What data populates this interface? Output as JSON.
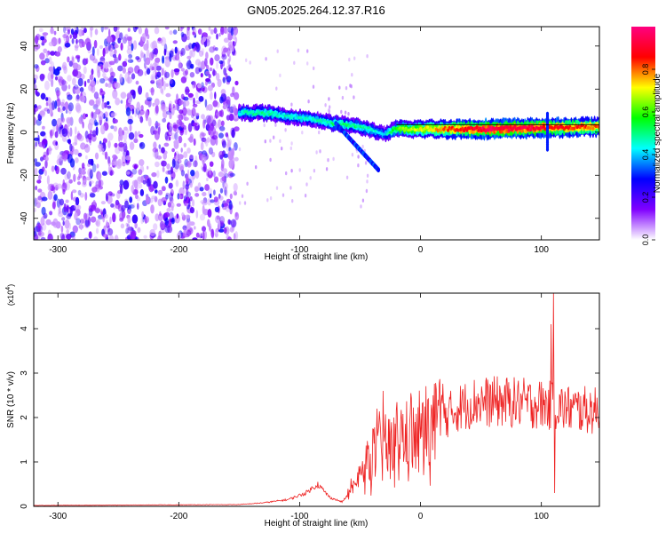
{
  "title": "GN05.2025.264.12.37.R16",
  "chart_data": [
    {
      "type": "heatmap",
      "panel": "spectrogram",
      "xlabel": "Height of straight line (km)",
      "ylabel": "Frequency (Hz)",
      "xlim": [
        -320,
        148
      ],
      "ylim": [
        -50,
        49
      ],
      "xticks": [
        -300,
        -200,
        -100,
        0,
        100
      ],
      "yticks": [
        -40,
        -20,
        0,
        20,
        40
      ],
      "colorbar": {
        "label": "Normalized spectral amplitude",
        "range": [
          0,
          1
        ],
        "ticks": [
          "0.0",
          "0.2",
          "0.4",
          "0.6",
          "0.8"
        ],
        "colors": [
          "#ffffff",
          "#8000ff",
          "#0000ff",
          "#00ffff",
          "#00ff00",
          "#ffff00",
          "#ff0000",
          "#ff0080"
        ]
      },
      "noise_region": {
        "x": [
          -320,
          -152
        ],
        "y": [
          -50,
          49
        ],
        "level": [
          0.05,
          0.3
        ]
      },
      "signal_track": [
        {
          "x": -150,
          "f": 9,
          "a": 0.45
        },
        {
          "x": -130,
          "f": 9,
          "a": 0.5
        },
        {
          "x": -110,
          "f": 7.5,
          "a": 0.45
        },
        {
          "x": -90,
          "f": 6,
          "a": 0.45
        },
        {
          "x": -70,
          "f": 4,
          "a": 0.5
        },
        {
          "x": -55,
          "f": 3,
          "a": 0.5
        },
        {
          "x": -40,
          "f": 1,
          "a": 0.45
        },
        {
          "x": -30,
          "f": -1,
          "a": 0.4
        },
        {
          "x": -20,
          "f": 1.5,
          "a": 0.6
        },
        {
          "x": 0,
          "f": 1.5,
          "a": 0.7
        },
        {
          "x": 30,
          "f": 1.5,
          "a": 0.85
        },
        {
          "x": 60,
          "f": 1.5,
          "a": 0.95
        },
        {
          "x": 100,
          "f": 2,
          "a": 0.9
        },
        {
          "x": 148,
          "f": 2.5,
          "a": 0.8
        }
      ],
      "harmonic_line": {
        "y": 3.5,
        "from_x": -20,
        "to_x": 148
      }
    },
    {
      "type": "line",
      "panel": "snr",
      "xlabel": "Height of straight line (km)",
      "ylabel": "SNR (10 * v/v)",
      "multiplier_base": "x10",
      "multiplier_exp": "4",
      "xlim": [
        -320,
        148
      ],
      "ylim": [
        0,
        4.8
      ],
      "xticks": [
        -300,
        -200,
        -100,
        0,
        100
      ],
      "yticks": [
        0,
        1,
        2,
        3,
        4
      ],
      "color": "#ee2222",
      "envelope": [
        {
          "x": -320,
          "y": 0.02
        },
        {
          "x": -150,
          "y": 0.04
        },
        {
          "x": -130,
          "y": 0.08
        },
        {
          "x": -110,
          "y": 0.15
        },
        {
          "x": -95,
          "y": 0.3
        },
        {
          "x": -85,
          "y": 0.5
        },
        {
          "x": -75,
          "y": 0.2
        },
        {
          "x": -65,
          "y": 0.1
        },
        {
          "x": -55,
          "y": 0.4
        },
        {
          "x": -45,
          "y": 1.0
        },
        {
          "x": -30,
          "y": 1.3
        },
        {
          "x": -15,
          "y": 1.5
        },
        {
          "x": 0,
          "y": 1.6
        },
        {
          "x": 15,
          "y": 1.9
        },
        {
          "x": 30,
          "y": 2.2
        },
        {
          "x": 45,
          "y": 2.35
        },
        {
          "x": 70,
          "y": 2.35
        },
        {
          "x": 100,
          "y": 2.3
        },
        {
          "x": 120,
          "y": 2.2
        },
        {
          "x": 148,
          "y": 2.15
        }
      ],
      "spikes": [
        {
          "x": -36,
          "y": 2.2
        },
        {
          "x": -31,
          "y": 2.6
        },
        {
          "x": -22,
          "y": 2.0
        },
        {
          "x": 108,
          "y": 4.1
        },
        {
          "x": 110,
          "y": 4.8
        },
        {
          "x": 111,
          "y": 0.3
        }
      ]
    }
  ]
}
